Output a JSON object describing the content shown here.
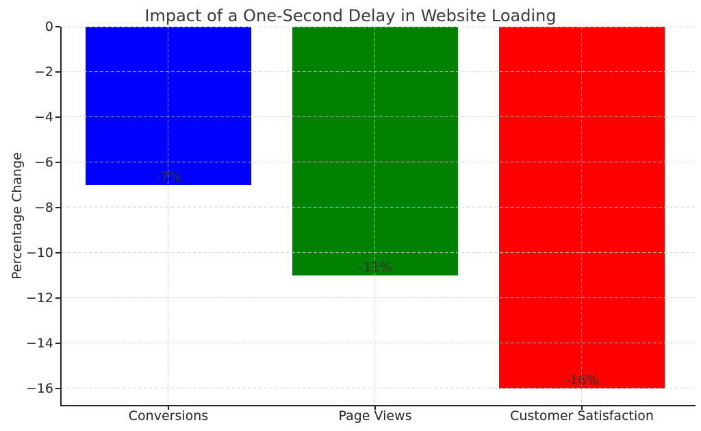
{
  "chart_data": {
    "type": "bar",
    "title": "Impact of a One-Second Delay in Website Loading",
    "ylabel": "Percentage Change",
    "xlabel": "",
    "categories": [
      "Conversions",
      "Page Views",
      "Customer Satisfaction"
    ],
    "values": [
      -7,
      -11,
      -16
    ],
    "bar_labels": [
      "-7%",
      "-11%",
      "-16%"
    ],
    "bar_colors": [
      "#0000ff",
      "#008000",
      "#ff0000"
    ],
    "yticks": [
      0,
      -2,
      -4,
      -6,
      -8,
      -10,
      -12,
      -14,
      -16
    ],
    "ylim": [
      -16.73,
      0
    ],
    "xlim": [
      -0.516,
      2.549
    ],
    "bar_rel_width": 0.8,
    "grid": true,
    "grid_line_style": "dashed",
    "grid_color": "#cdcdcd",
    "spine_color": "#262626",
    "text_color": "#262626",
    "legend": "none",
    "background": "#ffffff"
  }
}
